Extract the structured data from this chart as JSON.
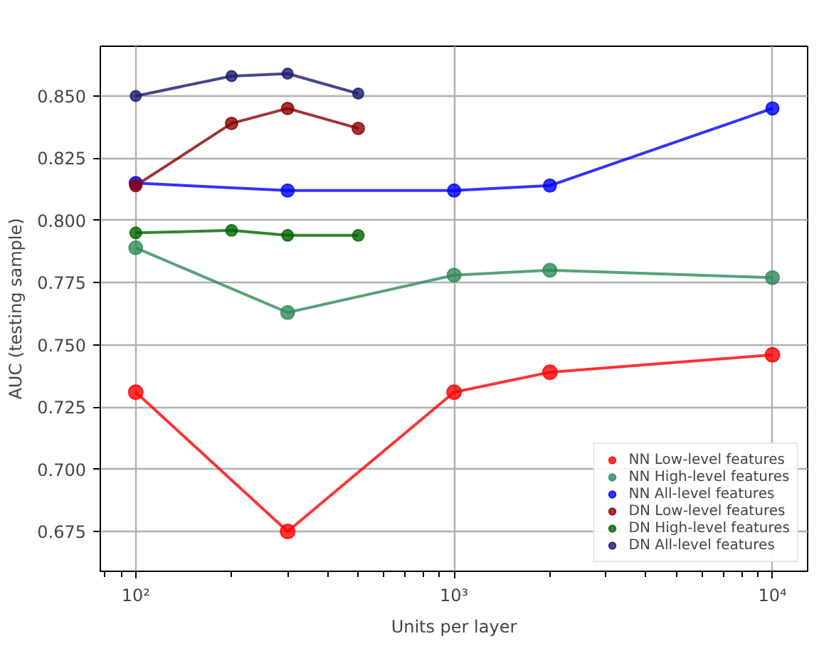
{
  "chart_data": {
    "type": "line",
    "xlabel": "Units per layer",
    "ylabel": "AUC (testing sample)",
    "log": "x",
    "xlim": [
      77.4,
      12900
    ],
    "ylim": [
      0.659,
      0.87
    ],
    "xticks": [
      {
        "value": 100,
        "label": "10²"
      },
      {
        "value": 1000,
        "label": "10³"
      },
      {
        "value": 10000,
        "label": "10⁴"
      }
    ],
    "yticks": [
      {
        "value": 0.675,
        "label": "0.675"
      },
      {
        "value": 0.7,
        "label": "0.700"
      },
      {
        "value": 0.725,
        "label": "0.725"
      },
      {
        "value": 0.75,
        "label": "0.750"
      },
      {
        "value": 0.775,
        "label": "0.775"
      },
      {
        "value": 0.8,
        "label": "0.800"
      },
      {
        "value": 0.825,
        "label": "0.825"
      },
      {
        "value": 0.85,
        "label": "0.850"
      }
    ],
    "grid": true,
    "legend": "bottom right",
    "marker": "circle",
    "line_style": "solid",
    "series": [
      {
        "name": "NN Low-level features",
        "color": "#ff0000",
        "x": [
          100,
          300,
          1000,
          2000,
          10000
        ],
        "values": [
          0.731,
          0.675,
          0.731,
          0.739,
          0.746
        ]
      },
      {
        "name": "NN High-level features",
        "color": "#2e8b57",
        "x": [
          100,
          300,
          1000,
          2000,
          10000
        ],
        "values": [
          0.789,
          0.763,
          0.778,
          0.78,
          0.777
        ]
      },
      {
        "name": "NN All-level features",
        "color": "#0000ff",
        "x": [
          100,
          300,
          1000,
          2000,
          10000
        ],
        "values": [
          0.815,
          0.812,
          0.812,
          0.814,
          0.845
        ]
      },
      {
        "name": "DN Low-level features",
        "color": "#8b0000",
        "x": [
          100,
          200,
          300,
          500
        ],
        "values": [
          0.814,
          0.839,
          0.845,
          0.837
        ]
      },
      {
        "name": "DN High-level features",
        "color": "#006400",
        "x": [
          100,
          200,
          300,
          500
        ],
        "values": [
          0.795,
          0.796,
          0.794,
          0.794
        ]
      },
      {
        "name": "DN All-level features",
        "color": "#191970",
        "x": [
          100,
          200,
          300,
          500
        ],
        "values": [
          0.85,
          0.858,
          0.859,
          0.851
        ]
      }
    ]
  }
}
